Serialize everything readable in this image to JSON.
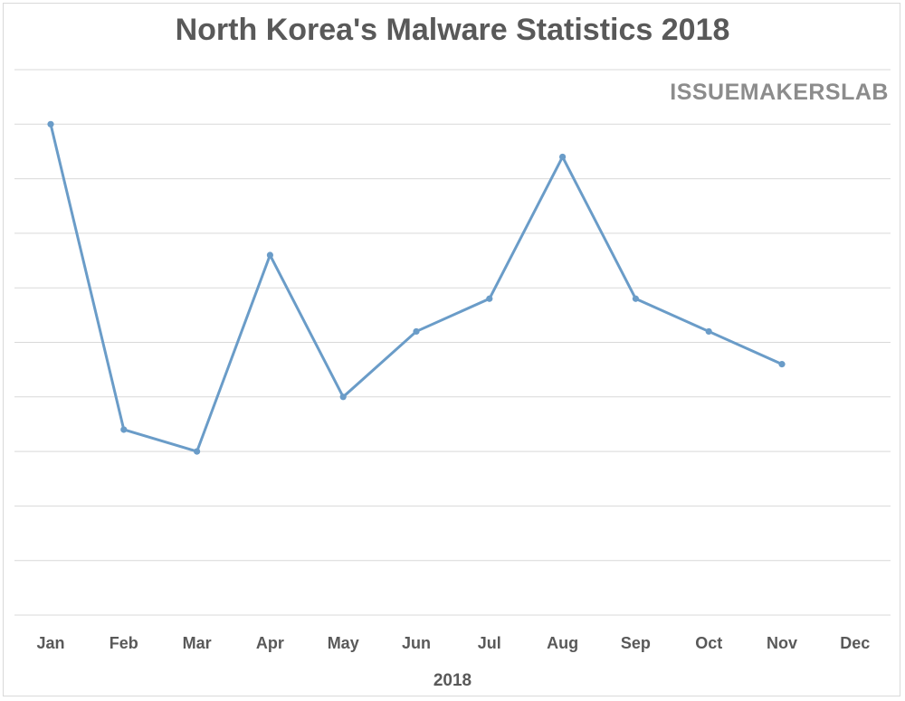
{
  "chart_data": {
    "type": "line",
    "title": "North Korea's Malware Statistics 2018",
    "watermark": "ISSUEMAKERSLAB",
    "xlabel": "2018",
    "ylabel": "",
    "categories": [
      "Jan",
      "Feb",
      "Mar",
      "Apr",
      "May",
      "Jun",
      "Jul",
      "Aug",
      "Sep",
      "Oct",
      "Nov",
      "Dec"
    ],
    "series": [
      {
        "values": [
          9.0,
          3.4,
          3.0,
          6.6,
          4.0,
          5.2,
          5.8,
          8.4,
          5.8,
          5.2,
          4.6,
          null
        ]
      }
    ],
    "ylim": [
      0,
      10
    ],
    "gridlines": true,
    "show_y_tick_labels": false,
    "line_color": "#6a9cc8"
  }
}
